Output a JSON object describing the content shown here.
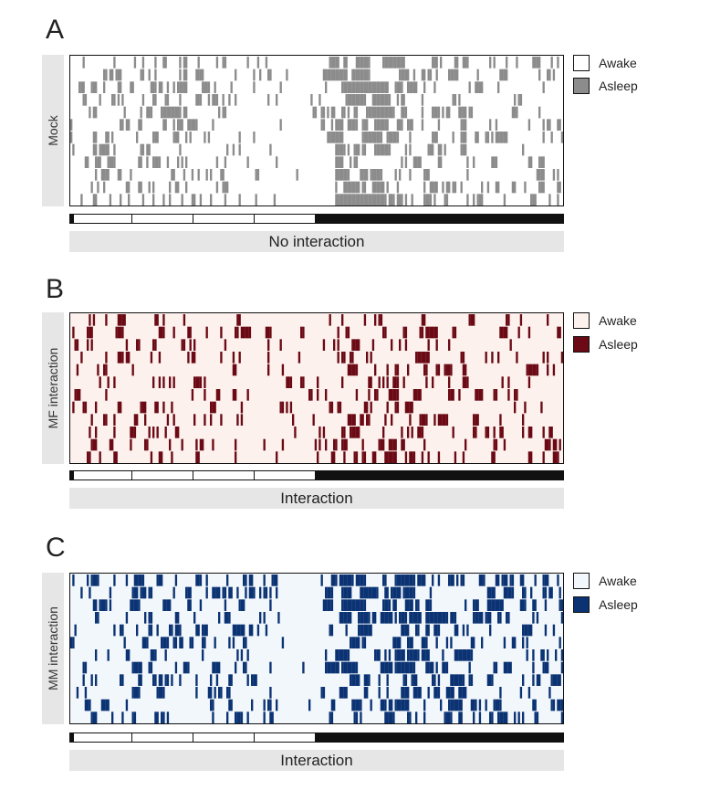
{
  "chart_data": [
    {
      "type": "heatmap",
      "panel_letter": "A",
      "row_label": "Mock",
      "condition": "No interaction",
      "legend": [
        "Awake",
        "Asleep"
      ],
      "colors": {
        "awake": "#ffffff",
        "asleep": "#8c8c8c"
      },
      "n_rows": 12,
      "n_bins": 240,
      "sleep_profile": [
        [
          0,
          0.16
        ],
        [
          40,
          0.24
        ],
        [
          95,
          0.13
        ],
        [
          105,
          0.02
        ],
        [
          122,
          0.02
        ],
        [
          128,
          0.5
        ],
        [
          160,
          0.3
        ],
        [
          200,
          0.18
        ],
        [
          230,
          0.2
        ],
        [
          239,
          0.15
        ]
      ],
      "light_phase": {
        "light": "first half",
        "dark": "second half"
      },
      "seed": 11
    },
    {
      "type": "heatmap",
      "panel_letter": "B",
      "row_label": "MF interaction",
      "condition": "Interaction",
      "legend": [
        "Awake",
        "Asleep"
      ],
      "colors": {
        "awake": "#fdf1ee",
        "asleep": "#6b0a14"
      },
      "n_rows": 12,
      "n_bins": 240,
      "sleep_profile": [
        [
          0,
          0.16
        ],
        [
          40,
          0.18
        ],
        [
          95,
          0.12
        ],
        [
          120,
          0.13
        ],
        [
          135,
          0.26
        ],
        [
          175,
          0.2
        ],
        [
          239,
          0.14
        ]
      ],
      "light_phase": {
        "light": "first half",
        "dark": "second half"
      },
      "seed": 29
    },
    {
      "type": "heatmap",
      "panel_letter": "C",
      "row_label": "MM interaction",
      "condition": "Interaction",
      "legend": [
        "Awake",
        "Asleep"
      ],
      "colors": {
        "awake": "#f2f7fc",
        "asleep": "#0b3373"
      },
      "n_rows": 12,
      "n_bins": 240,
      "sleep_profile": [
        [
          0,
          0.18
        ],
        [
          40,
          0.24
        ],
        [
          95,
          0.18
        ],
        [
          104,
          0.02
        ],
        [
          120,
          0.02
        ],
        [
          128,
          0.36
        ],
        [
          175,
          0.3
        ],
        [
          215,
          0.22
        ],
        [
          239,
          0.18
        ]
      ],
      "light_phase": {
        "light": "first half",
        "dark": "second half"
      },
      "seed": 47
    }
  ]
}
